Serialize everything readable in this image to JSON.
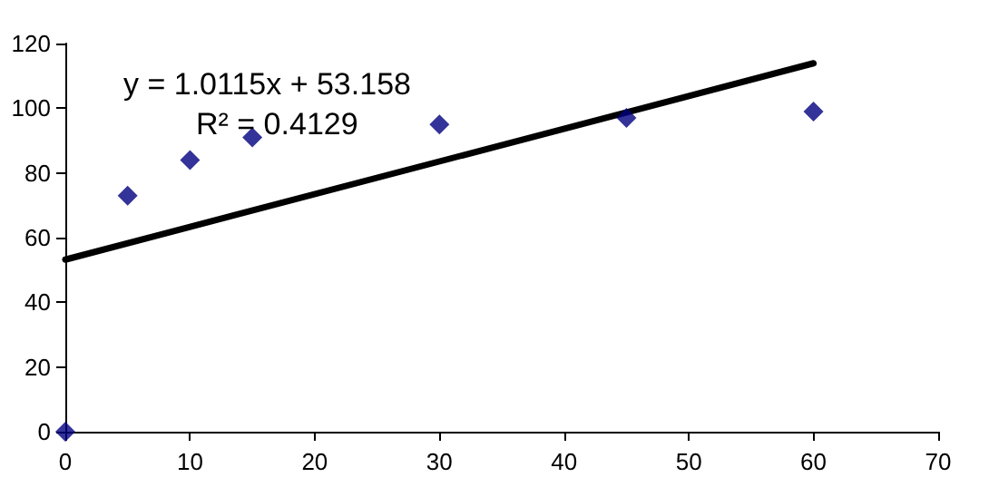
{
  "chart_data": {
    "type": "scatter",
    "x": [
      0,
      5,
      10,
      15,
      30,
      45,
      60
    ],
    "series": [
      {
        "color": "#000080",
        "marker": "diamond",
        "values": [
          0,
          73,
          84,
          91,
          95,
          97,
          99
        ]
      },
      {
        "type": "line",
        "color": "#000000",
        "marker": "none",
        "line_style": "solid",
        "x": [
          0,
          60
        ],
        "values": [
          53.2,
          113.9
        ]
      }
    ],
    "annotations": [
      "y = 1.0115x + 53.158",
      "R² = 0.4129"
    ],
    "xlim": [
      0,
      70
    ],
    "xticks": [
      0,
      10,
      20,
      30,
      40,
      50,
      60,
      70
    ],
    "ylim": [
      0,
      120
    ],
    "yticks": [
      0,
      20,
      40,
      60,
      80,
      100,
      120
    ],
    "grid": false
  }
}
